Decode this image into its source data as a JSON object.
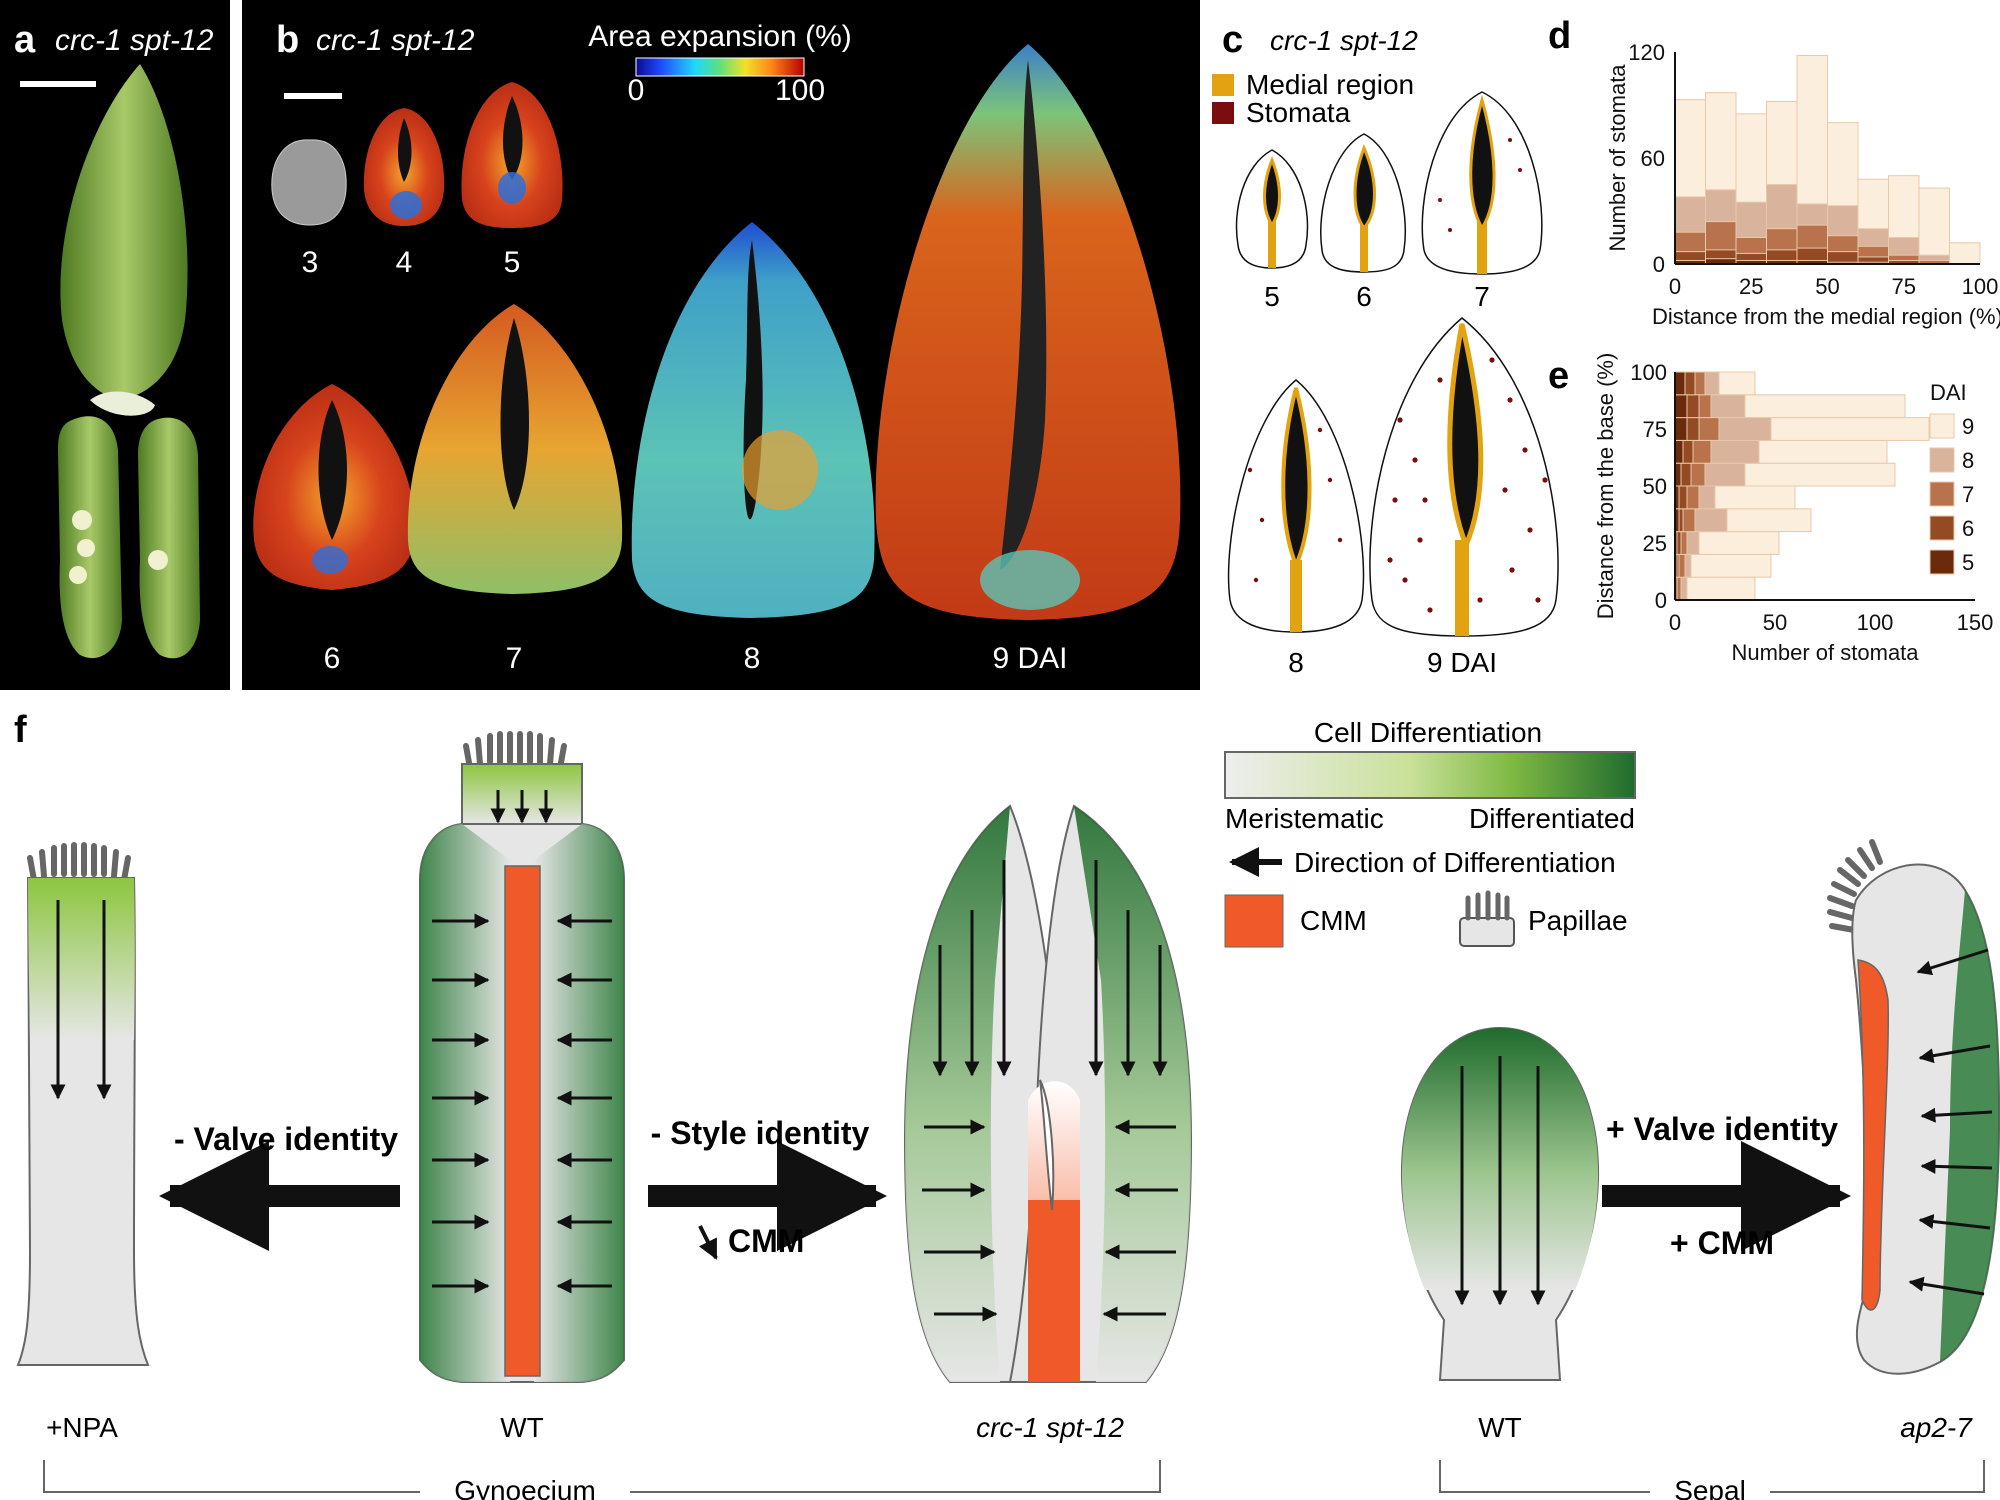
{
  "panels": {
    "a": {
      "letter": "a",
      "genotype": "crc-1 spt-12"
    },
    "b": {
      "letter": "b",
      "genotype": "crc-1 spt-12",
      "colorbar_title": "Area expansion (%)",
      "colorbar_min": "0",
      "colorbar_max": "100",
      "stages_top": [
        "3",
        "4",
        "5"
      ],
      "stages_bottom": [
        "6",
        "7",
        "8",
        "9 DAI"
      ]
    },
    "c": {
      "letter": "c",
      "genotype": "crc-1 spt-12",
      "legend_medial": "Medial region",
      "legend_stomata": "Stomata",
      "stages_top": [
        "5",
        "6",
        "7"
      ],
      "stages_bottom": [
        "8",
        "9 DAI"
      ]
    },
    "d": {
      "letter": "d"
    },
    "e": {
      "letter": "e",
      "legend_title": "DAI"
    },
    "f": {
      "letter": "f"
    }
  },
  "chart_data": [
    {
      "type": "bar",
      "panel": "d",
      "xlabel": "Distance from the medial region (%)",
      "ylabel": "Number of stomata",
      "xlim": [
        0,
        100
      ],
      "ylim": [
        0,
        120
      ],
      "xticks": [
        "0",
        "25",
        "50",
        "75",
        "100"
      ],
      "yticks": [
        "0",
        "60",
        "120"
      ],
      "bin_edges": [
        0,
        10,
        20,
        30,
        40,
        50,
        60,
        70,
        80,
        90,
        100
      ],
      "series": [
        {
          "name": "9",
          "color": "#fbeedd",
          "values": [
            93,
            97,
            85,
            92,
            118,
            80,
            48,
            50,
            43,
            12
          ]
        },
        {
          "name": "8",
          "color": "#d9b39c",
          "values": [
            38,
            42,
            35,
            45,
            34,
            33,
            20,
            15,
            5,
            0
          ]
        },
        {
          "name": "7",
          "color": "#b8734d",
          "values": [
            18,
            24,
            15,
            20,
            22,
            16,
            10,
            5,
            2,
            0
          ]
        },
        {
          "name": "6",
          "color": "#944a22",
          "values": [
            7,
            8,
            6,
            8,
            9,
            7,
            4,
            2,
            0,
            0
          ]
        },
        {
          "name": "5",
          "color": "#6b2a0c",
          "values": [
            2,
            3,
            2,
            2,
            2,
            1,
            1,
            0,
            0,
            0
          ]
        }
      ]
    },
    {
      "type": "bar",
      "panel": "e",
      "orientation": "horizontal",
      "xlabel": "Number of stomata",
      "ylabel": "Distance from the base (%)",
      "xlim": [
        0,
        150
      ],
      "ylim": [
        0,
        100
      ],
      "xticks": [
        "0",
        "50",
        "100",
        "150"
      ],
      "yticks": [
        "0",
        "25",
        "50",
        "75",
        "100"
      ],
      "bin_edges": [
        0,
        10,
        20,
        30,
        40,
        50,
        60,
        70,
        80,
        90,
        100
      ],
      "legend": "right",
      "series": [
        {
          "name": "9",
          "color": "#fbeedd",
          "values": [
            40,
            48,
            52,
            68,
            60,
            110,
            106,
            127,
            115,
            40
          ]
        },
        {
          "name": "8",
          "color": "#d9b39c",
          "values": [
            6,
            8,
            12,
            26,
            20,
            35,
            42,
            48,
            35,
            22
          ]
        },
        {
          "name": "7",
          "color": "#b8734d",
          "values": [
            3,
            5,
            6,
            10,
            12,
            15,
            18,
            22,
            18,
            15
          ]
        },
        {
          "name": "6",
          "color": "#944a22",
          "values": [
            1,
            2,
            3,
            4,
            6,
            8,
            9,
            12,
            12,
            10
          ]
        },
        {
          "name": "5",
          "color": "#6b2a0c",
          "values": [
            0,
            1,
            1,
            2,
            2,
            3,
            4,
            6,
            6,
            5
          ]
        }
      ]
    }
  ],
  "diagram": {
    "legend_title": "Cell Differentiation",
    "legend_left": "Meristematic",
    "legend_right": "Differentiated",
    "legend_direction": "Direction of Differentiation",
    "legend_cmm": "CMM",
    "legend_papillae": "Papillae",
    "labels": {
      "npa": "+NPA",
      "wt_gyn": "WT",
      "crc": "crc-1 spt-12",
      "wt_sepal": "WT",
      "ap2": "ap2-7"
    },
    "arrows": {
      "valve_minus": "- Valve identity",
      "style_minus": "- Style identity",
      "cmm_down": "CMM",
      "valve_plus": "+ Valve identity",
      "cmm_plus": "+ CMM"
    },
    "groups": {
      "gynoecium": "Gynoecium",
      "sepal": "Sepal"
    },
    "colors": {
      "cmm": "#f05a28",
      "green_dark": "#1f6b2d",
      "green_light": "#8cc63f",
      "grey": "#e6e6e6",
      "medial": "#e3a310",
      "stomata": "#7a0d0d"
    }
  }
}
